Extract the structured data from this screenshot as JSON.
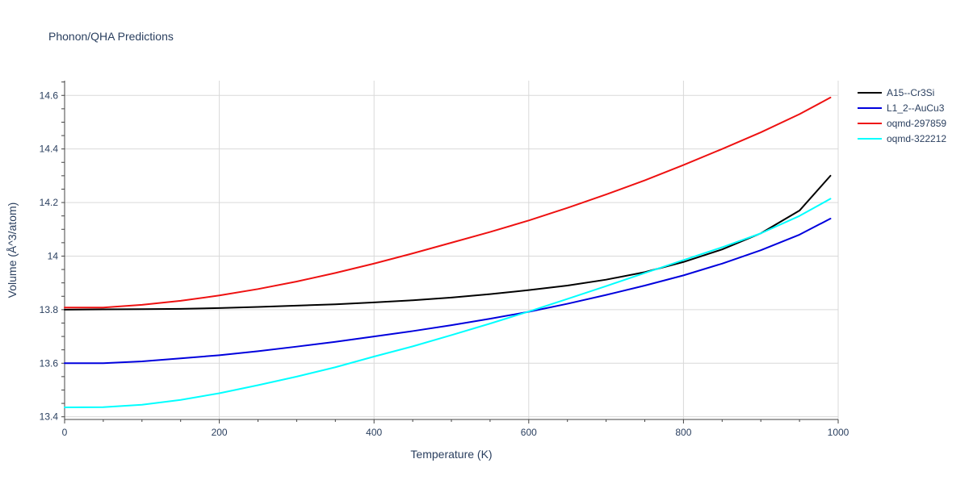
{
  "chart_data": {
    "type": "line",
    "title": "Phonon/QHA Predictions",
    "xlabel": "Temperature (K)",
    "ylabel": "Volume (Å^3/atom)",
    "xlim": [
      0,
      1000
    ],
    "ylim": [
      13.39,
      14.655
    ],
    "x_ticks": [
      0,
      200,
      400,
      600,
      800,
      1000
    ],
    "x_tick_labels": [
      "0",
      "200",
      "400",
      "600",
      "800",
      "1000"
    ],
    "y_ticks": [
      13.4,
      13.6,
      13.8,
      14.0,
      14.2,
      14.4,
      14.6
    ],
    "y_tick_labels": [
      "13.4",
      "13.6",
      "13.8",
      "14",
      "14.2",
      "14.4",
      "14.6"
    ],
    "grid": true,
    "legend_position": "top-right",
    "x": [
      0,
      50,
      100,
      150,
      200,
      250,
      300,
      350,
      400,
      450,
      500,
      550,
      600,
      650,
      700,
      750,
      800,
      850,
      900,
      950,
      990
    ],
    "series": [
      {
        "name": "A15--Cr3Si",
        "color": "#000000",
        "values": [
          13.8,
          13.801,
          13.802,
          13.803,
          13.806,
          13.81,
          13.815,
          13.82,
          13.827,
          13.835,
          13.845,
          13.858,
          13.873,
          13.89,
          13.912,
          13.94,
          13.978,
          14.025,
          14.085,
          14.17,
          14.3
        ]
      },
      {
        "name": "L1_2--AuCu3",
        "color": "#0000dd",
        "values": [
          13.6,
          13.6,
          13.607,
          13.618,
          13.63,
          13.645,
          13.662,
          13.68,
          13.7,
          13.72,
          13.742,
          13.766,
          13.792,
          13.822,
          13.855,
          13.89,
          13.928,
          13.972,
          14.022,
          14.08,
          14.14
        ]
      },
      {
        "name": "oqmd-297859",
        "color": "#ee1111",
        "values": [
          13.808,
          13.808,
          13.818,
          13.833,
          13.853,
          13.877,
          13.905,
          13.937,
          13.972,
          14.01,
          14.05,
          14.09,
          14.133,
          14.18,
          14.23,
          14.283,
          14.34,
          14.4,
          14.462,
          14.53,
          14.592
        ]
      },
      {
        "name": "oqmd-322212",
        "color": "#00ffff",
        "values": [
          13.435,
          13.436,
          13.445,
          13.463,
          13.488,
          13.518,
          13.55,
          13.585,
          13.625,
          13.663,
          13.705,
          13.748,
          13.793,
          13.84,
          13.888,
          13.937,
          13.985,
          14.033,
          14.085,
          14.15,
          14.214
        ]
      }
    ]
  }
}
